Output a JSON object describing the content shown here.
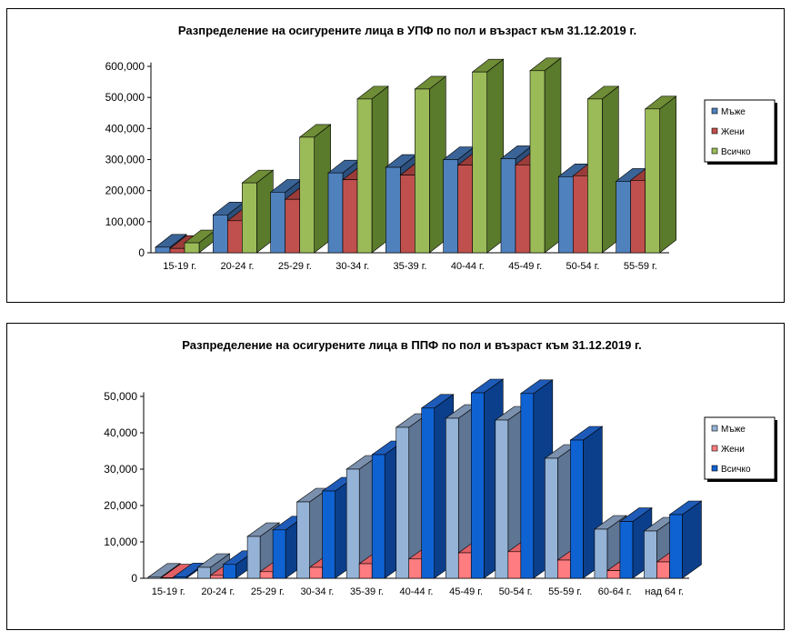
{
  "chart_data": [
    {
      "type": "bar",
      "title": "Разпределение на осигурените  лица в УПФ    по пол и възраст  към  31.12.2019  г.",
      "categories": [
        "15-19 г.",
        "20-24 г.",
        "25-29 г.",
        "30-34 г.",
        "35-39 г.",
        "40-44 г.",
        "45-49 г.",
        "50-54 г.",
        "55-59 г."
      ],
      "series": [
        {
          "name": "Мъже",
          "values": [
            18000,
            122000,
            195000,
            257000,
            275000,
            300000,
            303000,
            245000,
            230000
          ]
        },
        {
          "name": "Жени",
          "values": [
            14000,
            103000,
            172000,
            235000,
            250000,
            282000,
            283000,
            248000,
            233000
          ]
        },
        {
          "name": "Всичко",
          "values": [
            32000,
            225000,
            372000,
            495000,
            527000,
            582000,
            586000,
            495000,
            463000
          ]
        }
      ],
      "y_ticks": [
        "0",
        "100,000",
        "200,000",
        "300,000",
        "400,000",
        "500,000",
        "600,000"
      ],
      "ylim": [
        0,
        600000
      ],
      "grid": false,
      "legend": "right",
      "colors": {
        "Мъже": {
          "front": "#4f81bd",
          "top": "#3a6497",
          "side": "#2c4f7c"
        },
        "Жени": {
          "front": "#c0504d",
          "top": "#9a3c3a",
          "side": "#7a2c2a"
        },
        "Всичко": {
          "front": "#9bbb59",
          "top": "#6f8c36",
          "side": "#5a7a2c"
        }
      }
    },
    {
      "type": "bar",
      "title": "Разпределение на осигурените  лица в ППФ     по пол и възраст  към  31.12.2019  г.",
      "categories": [
        "15-19 г.",
        "20-24 г.",
        "25-29 г.",
        "30-34 г.",
        "35-39 г.",
        "40-44 г.",
        "45-49 г.",
        "50-54 г.",
        "55-59 г.",
        "60-64 г.",
        "над 64 г."
      ],
      "series": [
        {
          "name": "Мъже",
          "values": [
            300,
            3000,
            11500,
            21000,
            30000,
            41500,
            44000,
            43500,
            33000,
            13500,
            13000
          ]
        },
        {
          "name": "Жени",
          "values": [
            100,
            800,
            1800,
            3000,
            4000,
            5300,
            7000,
            7300,
            5000,
            2100,
            4500
          ]
        },
        {
          "name": "Всичко",
          "values": [
            400,
            3800,
            13300,
            24000,
            34000,
            46800,
            51000,
            50800,
            38000,
            15600,
            17500
          ]
        }
      ],
      "y_ticks": [
        "0",
        "10,000",
        "20,000",
        "30,000",
        "40,000",
        "50,000"
      ],
      "ylim": [
        0,
        50000
      ],
      "grid": false,
      "legend": "right",
      "colors": {
        "Мъже": {
          "front": "#95b3d7",
          "top": "#7a90ad",
          "side": "#5f7594"
        },
        "Жени": {
          "front": "#ff7c80",
          "top": "#e06065",
          "side": "#c04a4f"
        },
        "Всичко": {
          "front": "#0f62d2",
          "top": "#1e5bb8",
          "side": "#0b3f8c"
        }
      }
    }
  ]
}
